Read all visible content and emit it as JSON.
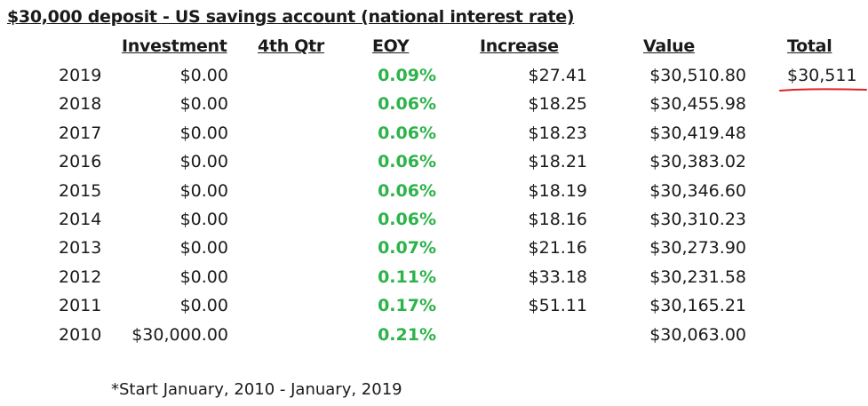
{
  "title": "$30,000 deposit - US savings account (national interest rate)",
  "headers": {
    "investment": "Investment",
    "qtr4": "4th Qtr",
    "eoy": "EOY",
    "increase": "Increase",
    "value": "Value",
    "total": "Total"
  },
  "rows": [
    {
      "year": "2019",
      "investment": "$0.00",
      "eoy": "0.09%",
      "increase": "$27.41",
      "value": "$30,510.80"
    },
    {
      "year": "2018",
      "investment": "$0.00",
      "eoy": "0.06%",
      "increase": "$18.25",
      "value": "$30,455.98"
    },
    {
      "year": "2017",
      "investment": "$0.00",
      "eoy": "0.06%",
      "increase": "$18.23",
      "value": "$30,419.48"
    },
    {
      "year": "2016",
      "investment": "$0.00",
      "eoy": "0.06%",
      "increase": "$18.21",
      "value": "$30,383.02"
    },
    {
      "year": "2015",
      "investment": "$0.00",
      "eoy": "0.06%",
      "increase": "$18.19",
      "value": "$30,346.60"
    },
    {
      "year": "2014",
      "investment": "$0.00",
      "eoy": "0.06%",
      "increase": "$18.16",
      "value": "$30,310.23"
    },
    {
      "year": "2013",
      "investment": "$0.00",
      "eoy": "0.07%",
      "increase": "$21.16",
      "value": "$30,273.90"
    },
    {
      "year": "2012",
      "investment": "$0.00",
      "eoy": "0.11%",
      "increase": "$33.18",
      "value": "$30,231.58"
    },
    {
      "year": "2011",
      "investment": "$0.00",
      "eoy": "0.17%",
      "increase": "$51.11",
      "value": "$30,165.21"
    },
    {
      "year": "2010",
      "investment": "$30,000.00",
      "eoy": "0.21%",
      "increase": "",
      "value": "$30,063.00"
    }
  ],
  "total_value": "$30,511",
  "footnote": "*Start January, 2010 - January, 2019",
  "colors": {
    "eoy_green": "#2db34a",
    "annotation_red": "#e02020"
  }
}
